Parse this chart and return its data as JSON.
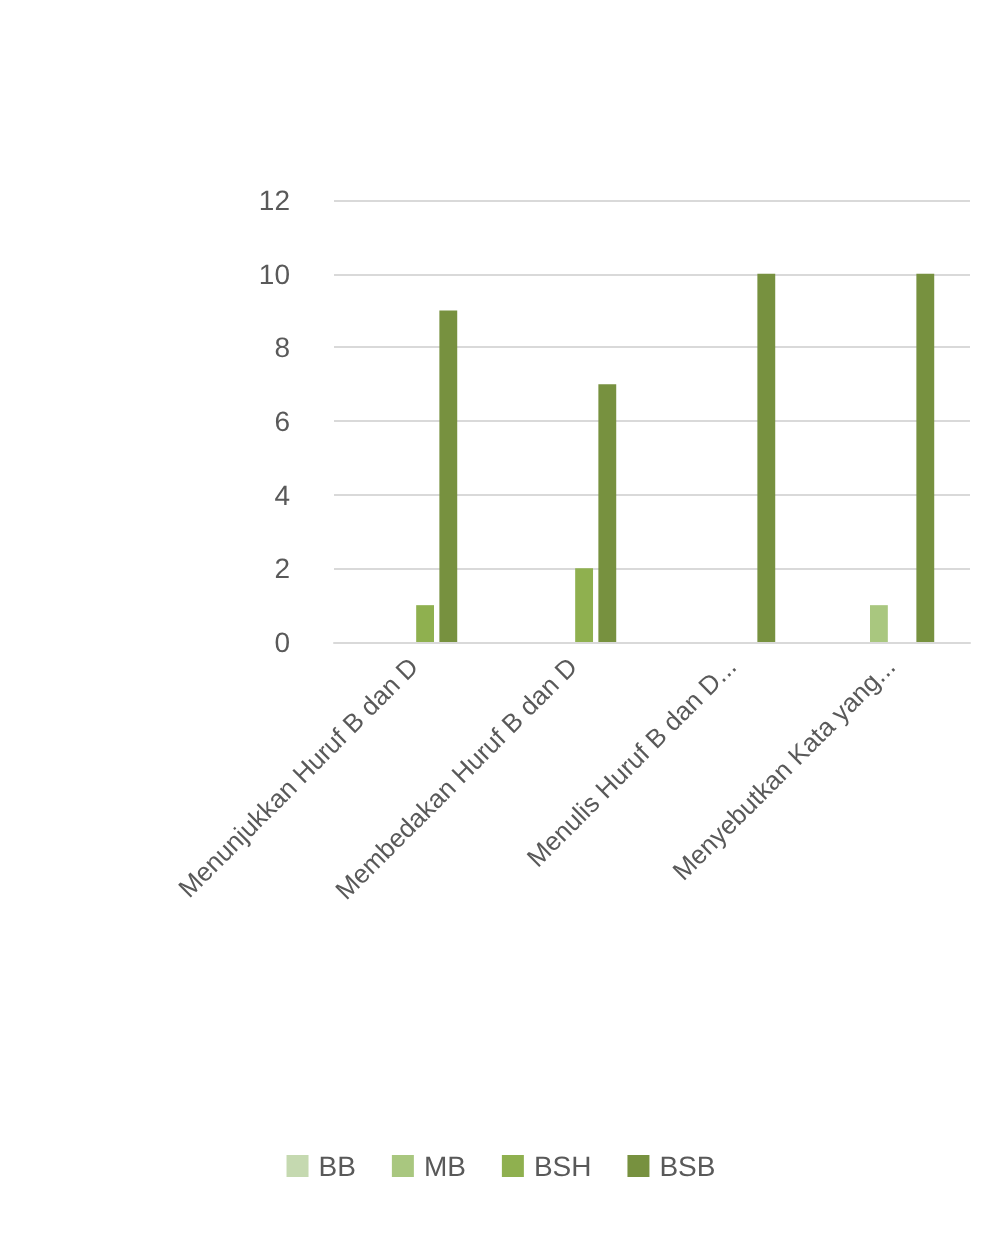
{
  "chart_data": {
    "type": "bar",
    "categories": [
      "Menunjukkan Huruf B dan D",
      "Membedakan Huruf B dan D",
      "Menulis Huruf B dan D...",
      "Menyebutkan Kata yang..."
    ],
    "series": [
      {
        "name": "BB",
        "color": "#c5d9b0",
        "values": [
          0,
          0,
          0,
          0
        ]
      },
      {
        "name": "MB",
        "color": "#a9c77f",
        "values": [
          0,
          0,
          0,
          1
        ]
      },
      {
        "name": "BSH",
        "color": "#8fb04f",
        "values": [
          1,
          2,
          0,
          0
        ]
      },
      {
        "name": "BSB",
        "color": "#77913f",
        "values": [
          9,
          7,
          10,
          10
        ]
      }
    ],
    "ylim": [
      0,
      12
    ],
    "yticks": [
      0,
      2,
      4,
      6,
      8,
      10,
      12
    ],
    "grid": "y",
    "legend": "bottom"
  }
}
